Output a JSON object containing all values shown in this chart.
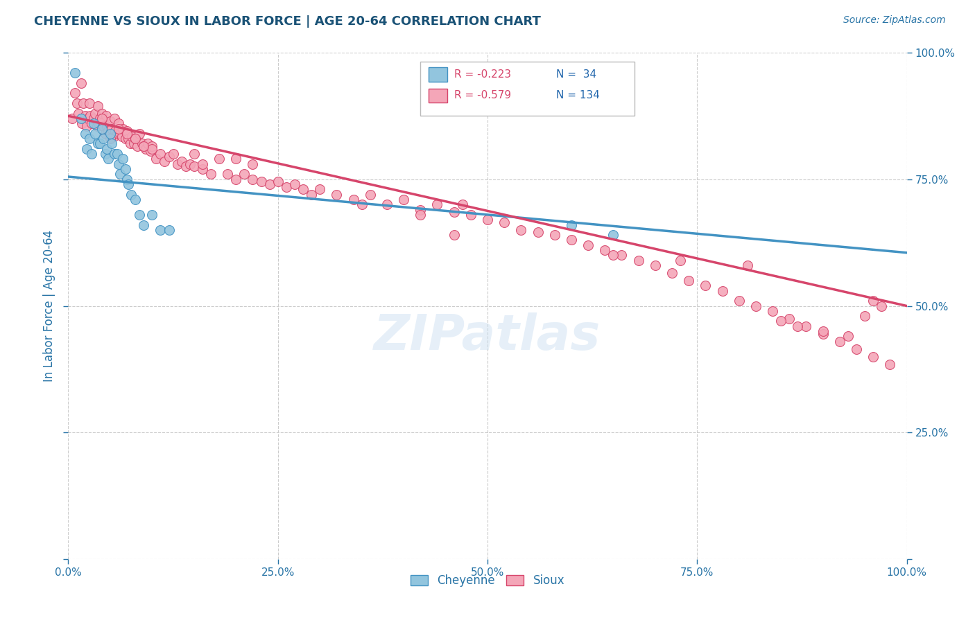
{
  "title": "CHEYENNE VS SIOUX IN LABOR FORCE | AGE 20-64 CORRELATION CHART",
  "source_text": "Source: ZipAtlas.com",
  "ylabel": "In Labor Force | Age 20-64",
  "xlim": [
    0.0,
    1.0
  ],
  "ylim": [
    0.0,
    1.0
  ],
  "xticks": [
    0.0,
    0.25,
    0.5,
    0.75,
    1.0
  ],
  "yticks": [
    0.0,
    0.25,
    0.5,
    0.75,
    1.0
  ],
  "xticklabels": [
    "0.0%",
    "25.0%",
    "50.0%",
    "75.0%",
    "100.0%"
  ],
  "yticklabels_right": [
    "",
    "25.0%",
    "50.0%",
    "75.0%",
    "100.0%"
  ],
  "cheyenne_color": "#92c5de",
  "sioux_color": "#f4a6b8",
  "cheyenne_edge_color": "#4393c3",
  "sioux_edge_color": "#d6456b",
  "cheyenne_line_color": "#4393c3",
  "sioux_line_color": "#d6456b",
  "legend_R_color": "#d6456b",
  "legend_N_color": "#2166ac",
  "title_color": "#1a5276",
  "axis_label_color": "#2874a6",
  "tick_color": "#2874a6",
  "watermark": "ZIPatlas",
  "background_color": "#ffffff",
  "grid_color": "#cccccc",
  "blue_line_start": 0.755,
  "blue_line_end": 0.605,
  "pink_line_start": 0.875,
  "pink_line_end": 0.5,
  "cheyenne_x": [
    0.008,
    0.015,
    0.02,
    0.022,
    0.025,
    0.028,
    0.03,
    0.032,
    0.035,
    0.038,
    0.04,
    0.042,
    0.044,
    0.046,
    0.048,
    0.05,
    0.052,
    0.055,
    0.058,
    0.06,
    0.062,
    0.065,
    0.068,
    0.07,
    0.072,
    0.075,
    0.08,
    0.085,
    0.09,
    0.1,
    0.11,
    0.12,
    0.6,
    0.65
  ],
  "cheyenne_y": [
    0.96,
    0.87,
    0.84,
    0.81,
    0.83,
    0.8,
    0.86,
    0.84,
    0.82,
    0.82,
    0.85,
    0.83,
    0.8,
    0.81,
    0.79,
    0.84,
    0.82,
    0.8,
    0.8,
    0.78,
    0.76,
    0.79,
    0.77,
    0.75,
    0.74,
    0.72,
    0.71,
    0.68,
    0.66,
    0.68,
    0.65,
    0.65,
    0.66,
    0.64
  ],
  "sioux_x": [
    0.005,
    0.008,
    0.01,
    0.012,
    0.015,
    0.016,
    0.018,
    0.02,
    0.022,
    0.024,
    0.025,
    0.026,
    0.028,
    0.03,
    0.032,
    0.034,
    0.035,
    0.036,
    0.038,
    0.04,
    0.042,
    0.044,
    0.045,
    0.046,
    0.048,
    0.05,
    0.052,
    0.054,
    0.055,
    0.056,
    0.058,
    0.06,
    0.062,
    0.064,
    0.065,
    0.068,
    0.07,
    0.072,
    0.074,
    0.076,
    0.078,
    0.08,
    0.082,
    0.085,
    0.088,
    0.09,
    0.092,
    0.095,
    0.098,
    0.1,
    0.105,
    0.11,
    0.115,
    0.12,
    0.125,
    0.13,
    0.135,
    0.14,
    0.145,
    0.15,
    0.16,
    0.17,
    0.18,
    0.19,
    0.2,
    0.21,
    0.22,
    0.23,
    0.24,
    0.25,
    0.26,
    0.27,
    0.28,
    0.29,
    0.3,
    0.32,
    0.34,
    0.36,
    0.38,
    0.4,
    0.42,
    0.44,
    0.46,
    0.48,
    0.5,
    0.52,
    0.54,
    0.56,
    0.58,
    0.6,
    0.62,
    0.64,
    0.66,
    0.68,
    0.7,
    0.72,
    0.74,
    0.76,
    0.78,
    0.8,
    0.82,
    0.84,
    0.86,
    0.88,
    0.9,
    0.92,
    0.94,
    0.96,
    0.98,
    0.1,
    0.15,
    0.2,
    0.08,
    0.06,
    0.04,
    0.05,
    0.07,
    0.09,
    0.16,
    0.22,
    0.35,
    0.42,
    0.46,
    0.47,
    0.65,
    0.73,
    0.81,
    0.85,
    0.87,
    0.9,
    0.93,
    0.95,
    0.96,
    0.97
  ],
  "sioux_y": [
    0.87,
    0.92,
    0.9,
    0.88,
    0.94,
    0.86,
    0.9,
    0.875,
    0.855,
    0.87,
    0.9,
    0.875,
    0.86,
    0.87,
    0.88,
    0.855,
    0.895,
    0.86,
    0.87,
    0.88,
    0.855,
    0.84,
    0.875,
    0.855,
    0.845,
    0.865,
    0.85,
    0.835,
    0.87,
    0.845,
    0.84,
    0.86,
    0.84,
    0.835,
    0.85,
    0.83,
    0.845,
    0.83,
    0.82,
    0.835,
    0.82,
    0.83,
    0.815,
    0.84,
    0.82,
    0.815,
    0.81,
    0.82,
    0.805,
    0.815,
    0.79,
    0.8,
    0.785,
    0.795,
    0.8,
    0.78,
    0.785,
    0.775,
    0.78,
    0.775,
    0.77,
    0.76,
    0.79,
    0.76,
    0.75,
    0.76,
    0.75,
    0.745,
    0.74,
    0.745,
    0.735,
    0.74,
    0.73,
    0.72,
    0.73,
    0.72,
    0.71,
    0.72,
    0.7,
    0.71,
    0.69,
    0.7,
    0.685,
    0.68,
    0.67,
    0.665,
    0.65,
    0.645,
    0.64,
    0.63,
    0.62,
    0.61,
    0.6,
    0.59,
    0.58,
    0.565,
    0.55,
    0.54,
    0.53,
    0.51,
    0.5,
    0.49,
    0.475,
    0.46,
    0.445,
    0.43,
    0.415,
    0.4,
    0.385,
    0.81,
    0.8,
    0.79,
    0.83,
    0.85,
    0.87,
    0.83,
    0.84,
    0.815,
    0.78,
    0.78,
    0.7,
    0.68,
    0.64,
    0.7,
    0.6,
    0.59,
    0.58,
    0.47,
    0.46,
    0.45,
    0.44,
    0.48,
    0.51,
    0.5
  ]
}
